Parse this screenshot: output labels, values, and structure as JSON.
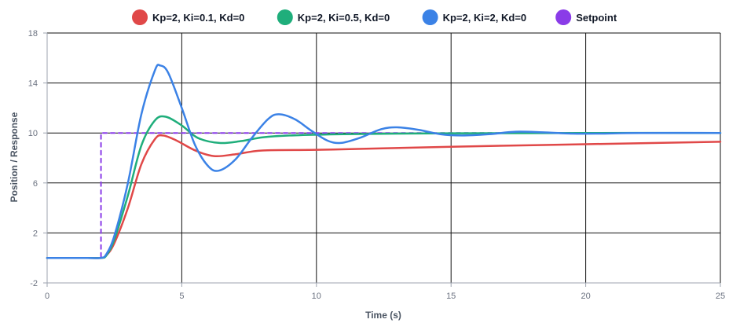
{
  "chart_data": {
    "type": "line",
    "xlabel": "Time (s)",
    "ylabel": "Position / Response",
    "xlim": [
      0,
      25
    ],
    "ylim": [
      -2,
      18
    ],
    "x_ticks": [
      "0",
      "5",
      "10",
      "15",
      "20",
      "25"
    ],
    "y_ticks": [
      "-2",
      "2",
      "6",
      "10",
      "14",
      "18"
    ],
    "grid": true,
    "legend_position": "top-center",
    "series": [
      {
        "name": "Kp=2, Ki=0.1, Kd=0",
        "color": "#e04848",
        "points": [
          [
            0,
            0
          ],
          [
            1.5,
            0
          ],
          [
            2,
            0
          ],
          [
            2.2,
            0.2
          ],
          [
            2.5,
            1.2
          ],
          [
            3,
            4
          ],
          [
            3.5,
            7.5
          ],
          [
            4,
            9.5
          ],
          [
            4.3,
            9.8
          ],
          [
            4.8,
            9.4
          ],
          [
            5.5,
            8.6
          ],
          [
            6.2,
            8.15
          ],
          [
            7,
            8.3
          ],
          [
            8,
            8.6
          ],
          [
            10,
            8.65
          ],
          [
            12,
            8.75
          ],
          [
            15,
            8.9
          ],
          [
            20,
            9.1
          ],
          [
            25,
            9.3
          ]
        ]
      },
      {
        "name": "Kp=2, Ki=0.5, Kd=0",
        "color": "#1fae7b",
        "points": [
          [
            0,
            0
          ],
          [
            1.5,
            0
          ],
          [
            2,
            0
          ],
          [
            2.2,
            0.2
          ],
          [
            2.5,
            1.5
          ],
          [
            3,
            5
          ],
          [
            3.5,
            9
          ],
          [
            4,
            11
          ],
          [
            4.4,
            11.3
          ],
          [
            5,
            10.6
          ],
          [
            5.6,
            9.6
          ],
          [
            6.4,
            9.2
          ],
          [
            7.2,
            9.35
          ],
          [
            8,
            9.65
          ],
          [
            9,
            9.8
          ],
          [
            11,
            9.9
          ],
          [
            13,
            9.95
          ],
          [
            15,
            9.97
          ],
          [
            20,
            10
          ],
          [
            25,
            10
          ]
        ]
      },
      {
        "name": "Kp=2, Ki=2, Kd=0",
        "color": "#3b82e6",
        "points": [
          [
            0,
            0
          ],
          [
            1.5,
            0
          ],
          [
            2,
            0
          ],
          [
            2.2,
            0.3
          ],
          [
            2.5,
            1.8
          ],
          [
            3,
            6
          ],
          [
            3.5,
            11.5
          ],
          [
            4,
            15
          ],
          [
            4.2,
            15.4
          ],
          [
            4.5,
            14.8
          ],
          [
            5,
            12
          ],
          [
            5.5,
            9
          ],
          [
            6,
            7.3
          ],
          [
            6.4,
            7
          ],
          [
            7,
            7.9
          ],
          [
            7.6,
            9.6
          ],
          [
            8.2,
            11.1
          ],
          [
            8.6,
            11.5
          ],
          [
            9.2,
            11.1
          ],
          [
            9.8,
            10.2
          ],
          [
            10.4,
            9.4
          ],
          [
            10.9,
            9.2
          ],
          [
            11.6,
            9.6
          ],
          [
            12.4,
            10.3
          ],
          [
            13,
            10.45
          ],
          [
            13.8,
            10.25
          ],
          [
            14.6,
            9.9
          ],
          [
            15.4,
            9.8
          ],
          [
            16.4,
            9.9
          ],
          [
            17.4,
            10.1
          ],
          [
            18.4,
            10.05
          ],
          [
            19.5,
            9.95
          ],
          [
            20.5,
            9.95
          ],
          [
            22,
            10
          ],
          [
            25,
            10
          ]
        ]
      },
      {
        "name": "Setpoint",
        "color": "#8a3ce8",
        "dashed": true,
        "points": [
          [
            0,
            0
          ],
          [
            2,
            0
          ],
          [
            2,
            10
          ],
          [
            25,
            10
          ]
        ]
      }
    ]
  }
}
